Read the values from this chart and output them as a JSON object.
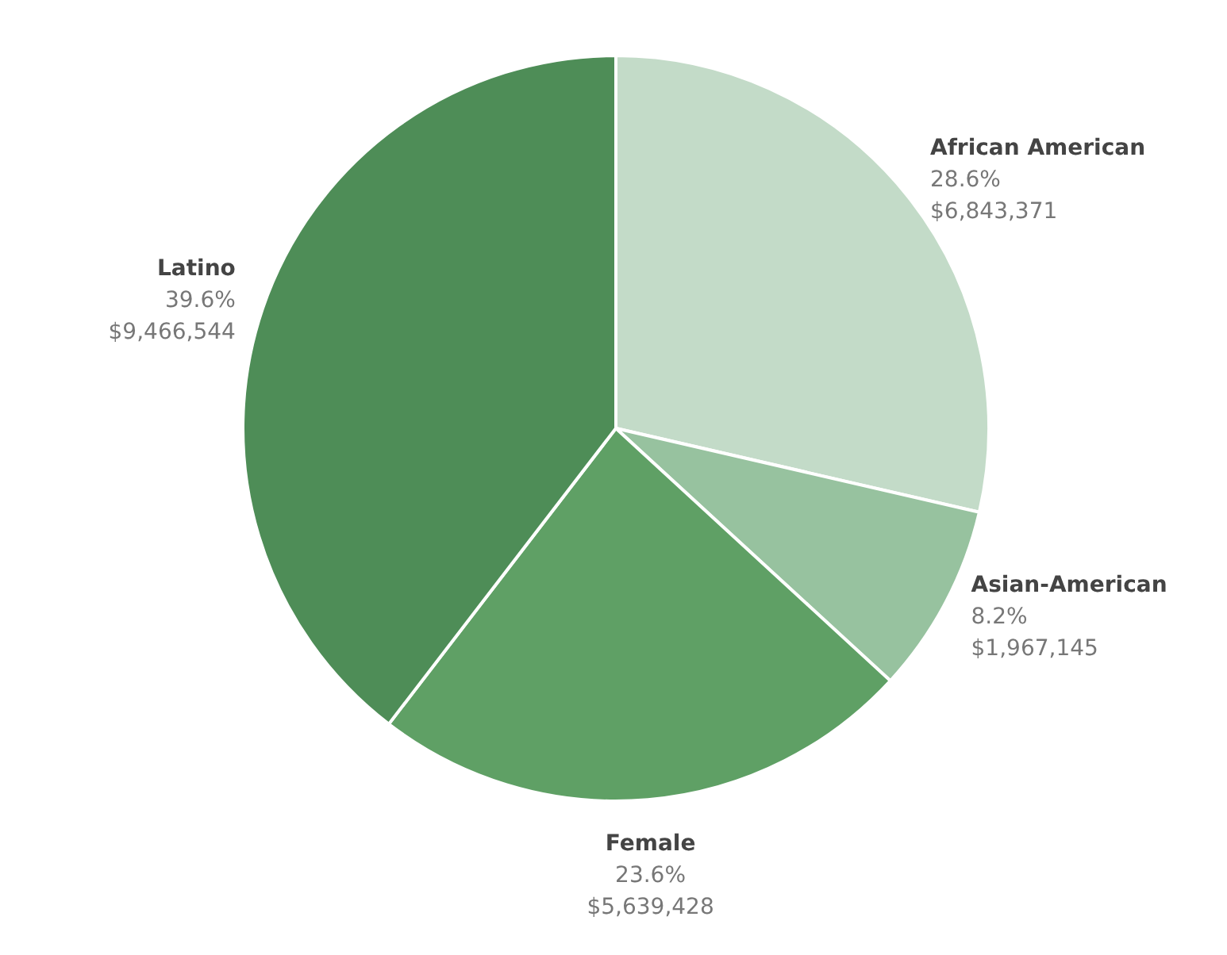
{
  "chart_data": {
    "type": "pie",
    "categories": [
      "African American",
      "Asian-American",
      "Female",
      "Latino"
    ],
    "values": [
      6843371,
      1967145,
      5639428,
      9466544
    ],
    "colors": [
      "#c3dbc8",
      "#97c29f",
      "#5fa065",
      "#4e8d57"
    ],
    "value_labels": [
      "28.6%\n$6,843,371",
      "8.2%\n$1,967,145",
      "23.6%\n$5,639,428",
      "39.6%\n$9,466,544"
    ]
  }
}
